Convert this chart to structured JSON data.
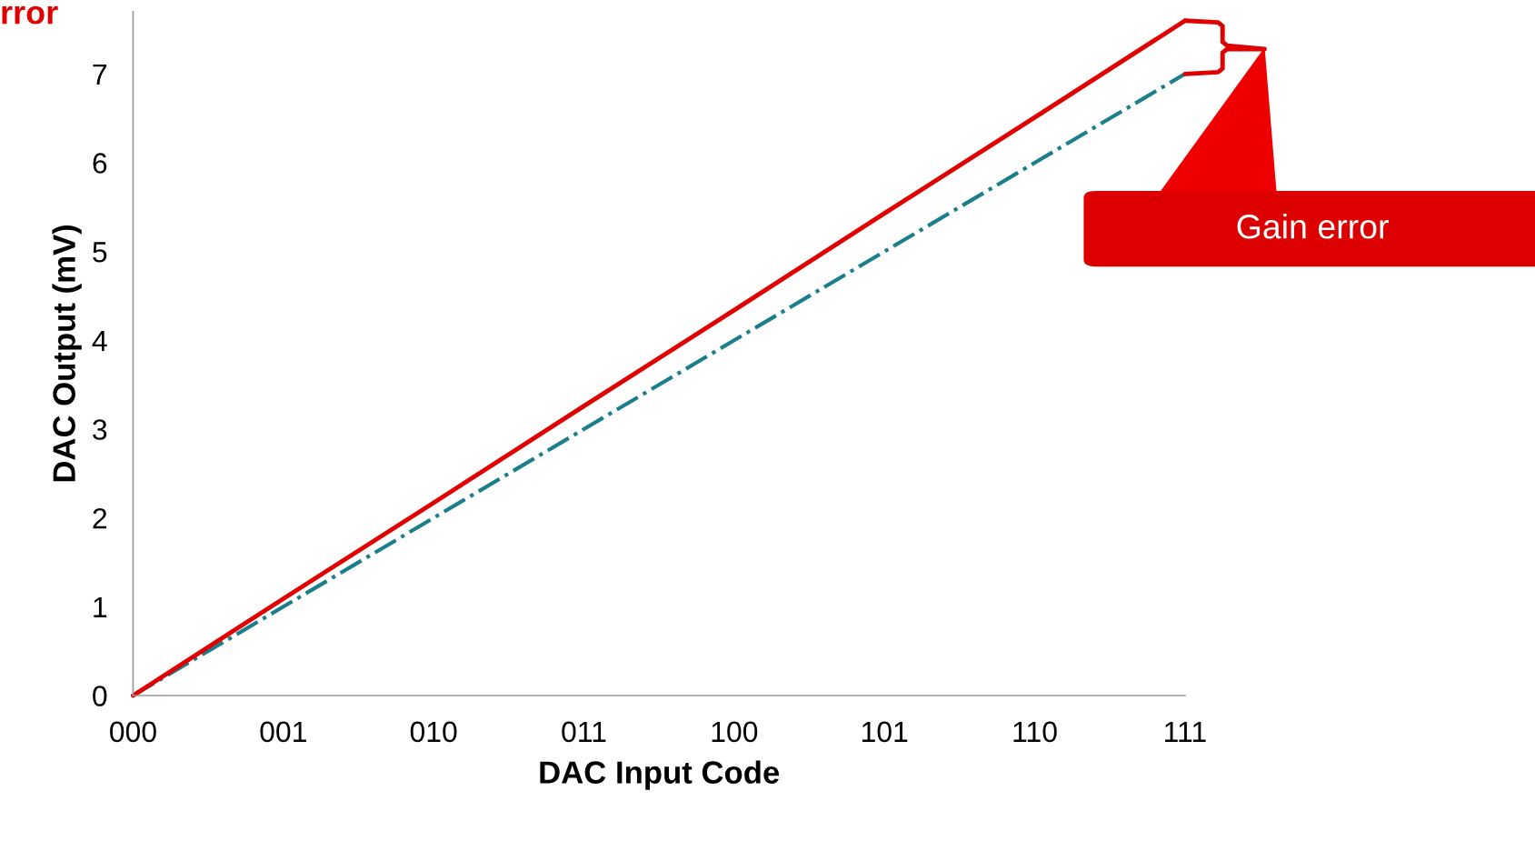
{
  "chart_data": {
    "type": "line",
    "title": "rror",
    "xlabel": "DAC Input Code",
    "ylabel": "DAC Output (mV)",
    "categories": [
      "000",
      "001",
      "010",
      "011",
      "100",
      "101",
      "110",
      "111"
    ],
    "series": [
      {
        "color": "#1a7f8a",
        "line_style": "dashdot",
        "values": [
          0,
          1,
          2,
          3,
          4,
          5,
          6,
          7
        ]
      },
      {
        "color": "#e00000",
        "line_style": "solid",
        "values": [
          0,
          1.09,
          2.17,
          3.26,
          4.34,
          5.43,
          6.51,
          7.6
        ]
      }
    ],
    "ylim": [
      0,
      7.7
    ],
    "yticks": [
      0,
      1,
      2,
      3,
      4,
      5,
      6,
      7
    ],
    "grid": false,
    "legend": false,
    "marker": "none",
    "annotations": [
      "Gain error"
    ]
  }
}
